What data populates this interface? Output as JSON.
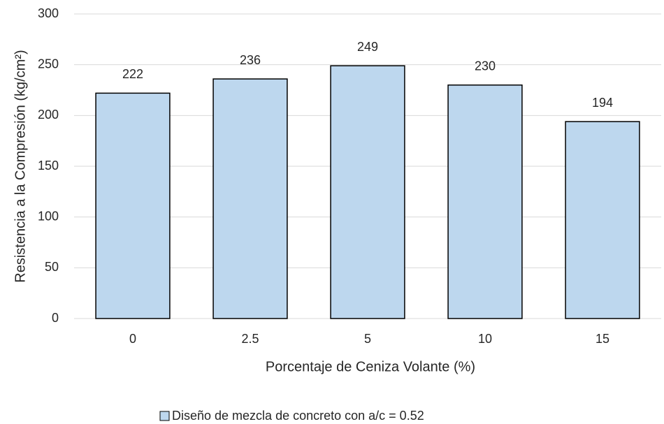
{
  "chart_data": {
    "type": "bar",
    "xlabel": "Porcentaje de Ceniza Volante (%)",
    "ylabel": "Resistencia a la Compresión (kg/cm²)",
    "categories": [
      "0",
      "2.5",
      "5",
      "10",
      "15"
    ],
    "series": [
      {
        "name": "Diseño de mezcla de concreto con a/c = 0.52",
        "color": "#bdd7ee",
        "values": [
          222,
          236,
          249,
          230,
          194
        ]
      }
    ],
    "ylim": [
      0,
      300
    ],
    "yticks": [
      0,
      50,
      100,
      150,
      200,
      250,
      300
    ],
    "grid": true,
    "legend": "bottom"
  }
}
